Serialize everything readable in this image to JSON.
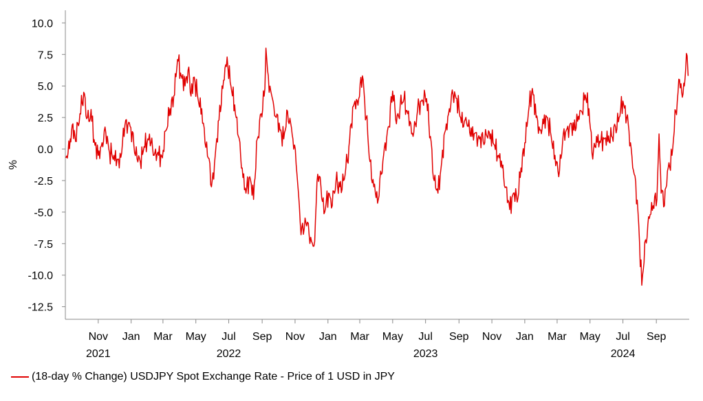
{
  "chart_data": {
    "type": "line",
    "ylabel": "%",
    "ylim": [
      -13.5,
      11
    ],
    "yticks": [
      "10.0",
      "7.5",
      "5.0",
      "2.5",
      "0.0",
      "-2.5",
      "-5.0",
      "-7.5",
      "-10.0",
      "-12.5"
    ],
    "xlim": [
      "2021-09-01",
      "2024-11-01"
    ],
    "month_ticks": [
      {
        "date": "2021-11-01",
        "label": "Nov"
      },
      {
        "date": "2022-01-01",
        "label": "Jan"
      },
      {
        "date": "2022-03-01",
        "label": "Mar"
      },
      {
        "date": "2022-05-01",
        "label": "May"
      },
      {
        "date": "2022-07-01",
        "label": "Jul"
      },
      {
        "date": "2022-09-01",
        "label": "Sep"
      },
      {
        "date": "2022-11-01",
        "label": "Nov"
      },
      {
        "date": "2023-01-01",
        "label": "Jan"
      },
      {
        "date": "2023-03-01",
        "label": "Mar"
      },
      {
        "date": "2023-05-01",
        "label": "May"
      },
      {
        "date": "2023-07-01",
        "label": "Jul"
      },
      {
        "date": "2023-09-01",
        "label": "Sep"
      },
      {
        "date": "2023-11-01",
        "label": "Nov"
      },
      {
        "date": "2024-01-01",
        "label": "Jan"
      },
      {
        "date": "2024-03-01",
        "label": "Mar"
      },
      {
        "date": "2024-05-01",
        "label": "May"
      },
      {
        "date": "2024-07-01",
        "label": "Jul"
      },
      {
        "date": "2024-09-01",
        "label": "Sep"
      }
    ],
    "year_labels": [
      {
        "date": "2021-11-01",
        "label": "2021"
      },
      {
        "date": "2022-07-01",
        "label": "2022"
      },
      {
        "date": "2023-07-01",
        "label": "2023"
      },
      {
        "date": "2024-07-01",
        "label": "2024"
      }
    ],
    "grid": false,
    "legend_position": "bottom-left",
    "series": [
      {
        "name": "(18-day % Change) USDJPY Spot Exchange Rate - Price of 1 USD in JPY",
        "color": "#e00000",
        "points": [
          [
            "2021-09-02",
            -0.7
          ],
          [
            "2021-09-10",
            0.8
          ],
          [
            "2021-09-15",
            2.0
          ],
          [
            "2021-09-20",
            0.6
          ],
          [
            "2021-09-28",
            2.8
          ],
          [
            "2021-10-05",
            4.5
          ],
          [
            "2021-10-12",
            2.5
          ],
          [
            "2021-10-20",
            2.2
          ],
          [
            "2021-10-26",
            0.3
          ],
          [
            "2021-11-01",
            -0.5
          ],
          [
            "2021-11-08",
            0.5
          ],
          [
            "2021-11-15",
            1.3
          ],
          [
            "2021-11-22",
            -0.3
          ],
          [
            "2021-11-30",
            -0.5
          ],
          [
            "2021-12-06",
            -0.8
          ],
          [
            "2021-12-10",
            -1.5
          ],
          [
            "2021-12-16",
            0.5
          ],
          [
            "2021-12-22",
            2.3
          ],
          [
            "2021-12-30",
            1.8
          ],
          [
            "2022-01-06",
            0.3
          ],
          [
            "2022-01-12",
            -0.8
          ],
          [
            "2022-01-18",
            -1.0
          ],
          [
            "2022-01-25",
            0.2
          ],
          [
            "2022-02-01",
            0.8
          ],
          [
            "2022-02-07",
            0.5
          ],
          [
            "2022-02-14",
            -0.3
          ],
          [
            "2022-02-21",
            -0.5
          ],
          [
            "2022-02-28",
            -0.7
          ],
          [
            "2022-03-07",
            1.5
          ],
          [
            "2022-03-14",
            3.2
          ],
          [
            "2022-03-21",
            4.2
          ],
          [
            "2022-03-28",
            7.1
          ],
          [
            "2022-04-04",
            5.8
          ],
          [
            "2022-04-11",
            5.0
          ],
          [
            "2022-04-18",
            6.5
          ],
          [
            "2022-04-22",
            4.2
          ],
          [
            "2022-04-28",
            5.7
          ],
          [
            "2022-05-05",
            4.0
          ],
          [
            "2022-05-12",
            3.2
          ],
          [
            "2022-05-18",
            0.5
          ],
          [
            "2022-05-24",
            -0.7
          ],
          [
            "2022-05-30",
            -3.0
          ],
          [
            "2022-06-06",
            -0.5
          ],
          [
            "2022-06-13",
            2.3
          ],
          [
            "2022-06-20",
            4.8
          ],
          [
            "2022-06-28",
            7.3
          ],
          [
            "2022-07-05",
            5.0
          ],
          [
            "2022-07-12",
            3.5
          ],
          [
            "2022-07-19",
            1.0
          ],
          [
            "2022-07-26",
            -1.5
          ],
          [
            "2022-08-02",
            -3.5
          ],
          [
            "2022-08-09",
            -2.2
          ],
          [
            "2022-08-16",
            -4.0
          ],
          [
            "2022-08-23",
            0.8
          ],
          [
            "2022-08-30",
            2.8
          ],
          [
            "2022-09-06",
            4.8
          ],
          [
            "2022-09-08",
            8.0
          ],
          [
            "2022-09-14",
            4.5
          ],
          [
            "2022-09-20",
            4.0
          ],
          [
            "2022-09-27",
            2.5
          ],
          [
            "2022-10-04",
            1.5
          ],
          [
            "2022-10-11",
            0.8
          ],
          [
            "2022-10-18",
            3.0
          ],
          [
            "2022-10-24",
            2.0
          ],
          [
            "2022-10-28",
            0.8
          ],
          [
            "2022-11-03",
            -1.2
          ],
          [
            "2022-11-09",
            -4.5
          ],
          [
            "2022-11-12",
            -6.8
          ],
          [
            "2022-11-18",
            -6.3
          ],
          [
            "2022-11-24",
            -5.8
          ],
          [
            "2022-11-30",
            -7.0
          ],
          [
            "2022-12-06",
            -7.7
          ],
          [
            "2022-12-13",
            -2.0
          ],
          [
            "2022-12-19",
            -3.0
          ],
          [
            "2022-12-26",
            -5.0
          ],
          [
            "2023-01-02",
            -3.5
          ],
          [
            "2023-01-09",
            -4.5
          ],
          [
            "2023-01-16",
            -2.5
          ],
          [
            "2023-01-23",
            -3.0
          ],
          [
            "2023-01-30",
            -2.5
          ],
          [
            "2023-02-06",
            -1.0
          ],
          [
            "2023-02-13",
            2.0
          ],
          [
            "2023-02-20",
            3.8
          ],
          [
            "2023-02-27",
            4.0
          ],
          [
            "2023-03-06",
            5.8
          ],
          [
            "2023-03-13",
            2.5
          ],
          [
            "2023-03-20",
            -1.0
          ],
          [
            "2023-03-27",
            -3.0
          ],
          [
            "2023-04-03",
            -4.3
          ],
          [
            "2023-04-10",
            -2.0
          ],
          [
            "2023-04-17",
            0.5
          ],
          [
            "2023-04-24",
            1.8
          ],
          [
            "2023-05-01",
            4.6
          ],
          [
            "2023-05-08",
            2.0
          ],
          [
            "2023-05-15",
            3.5
          ],
          [
            "2023-05-22",
            4.0
          ],
          [
            "2023-05-29",
            2.8
          ],
          [
            "2023-06-05",
            1.2
          ],
          [
            "2023-06-12",
            2.0
          ],
          [
            "2023-06-19",
            3.5
          ],
          [
            "2023-06-26",
            3.8
          ],
          [
            "2023-07-03",
            4.0
          ],
          [
            "2023-07-10",
            1.0
          ],
          [
            "2023-07-17",
            -2.5
          ],
          [
            "2023-07-24",
            -3.5
          ],
          [
            "2023-07-31",
            -1.0
          ],
          [
            "2023-08-07",
            1.5
          ],
          [
            "2023-08-14",
            3.2
          ],
          [
            "2023-08-21",
            4.3
          ],
          [
            "2023-08-28",
            4.0
          ],
          [
            "2023-09-04",
            2.5
          ],
          [
            "2023-09-11",
            2.2
          ],
          [
            "2023-09-18",
            1.8
          ],
          [
            "2023-09-25",
            1.0
          ],
          [
            "2023-10-02",
            1.3
          ],
          [
            "2023-10-09",
            0.8
          ],
          [
            "2023-10-16",
            0.6
          ],
          [
            "2023-10-23",
            1.0
          ],
          [
            "2023-10-30",
            1.2
          ],
          [
            "2023-11-06",
            0.3
          ],
          [
            "2023-11-13",
            -0.5
          ],
          [
            "2023-11-20",
            -1.5
          ],
          [
            "2023-11-27",
            -3.0
          ],
          [
            "2023-12-04",
            -4.8
          ],
          [
            "2023-12-11",
            -3.5
          ],
          [
            "2023-12-18",
            -4.2
          ],
          [
            "2023-12-25",
            -1.5
          ],
          [
            "2024-01-01",
            0.5
          ],
          [
            "2024-01-08",
            3.0
          ],
          [
            "2024-01-15",
            4.8
          ],
          [
            "2024-01-22",
            2.5
          ],
          [
            "2024-01-29",
            1.5
          ],
          [
            "2024-02-05",
            2.0
          ],
          [
            "2024-02-12",
            2.5
          ],
          [
            "2024-02-19",
            1.0
          ],
          [
            "2024-02-26",
            -0.5
          ],
          [
            "2024-03-04",
            -2.2
          ],
          [
            "2024-03-11",
            0.5
          ],
          [
            "2024-03-18",
            1.5
          ],
          [
            "2024-03-25",
            2.0
          ],
          [
            "2024-04-01",
            1.5
          ],
          [
            "2024-04-08",
            2.2
          ],
          [
            "2024-04-15",
            3.0
          ],
          [
            "2024-04-22",
            4.3
          ],
          [
            "2024-04-29",
            3.2
          ],
          [
            "2024-05-06",
            -0.8
          ],
          [
            "2024-05-13",
            1.0
          ],
          [
            "2024-05-20",
            0.5
          ],
          [
            "2024-05-27",
            0.8
          ],
          [
            "2024-06-03",
            0.6
          ],
          [
            "2024-06-10",
            1.0
          ],
          [
            "2024-06-17",
            1.8
          ],
          [
            "2024-06-24",
            2.5
          ],
          [
            "2024-07-01",
            3.8
          ],
          [
            "2024-07-08",
            2.5
          ],
          [
            "2024-07-15",
            0.5
          ],
          [
            "2024-07-22",
            -2.0
          ],
          [
            "2024-07-29",
            -5.0
          ],
          [
            "2024-08-05",
            -10.8
          ],
          [
            "2024-08-12",
            -7.2
          ],
          [
            "2024-08-19",
            -5.5
          ],
          [
            "2024-08-26",
            -4.5
          ],
          [
            "2024-09-02",
            -4.0
          ],
          [
            "2024-09-06",
            1.2
          ],
          [
            "2024-09-10",
            -3.5
          ],
          [
            "2024-09-16",
            -4.5
          ],
          [
            "2024-09-23",
            -1.5
          ],
          [
            "2024-09-30",
            -0.5
          ],
          [
            "2024-10-07",
            3.0
          ],
          [
            "2024-10-14",
            5.5
          ],
          [
            "2024-10-18",
            4.5
          ],
          [
            "2024-10-23",
            5.0
          ],
          [
            "2024-10-28",
            7.4
          ],
          [
            "2024-10-30",
            5.8
          ]
        ]
      }
    ]
  }
}
